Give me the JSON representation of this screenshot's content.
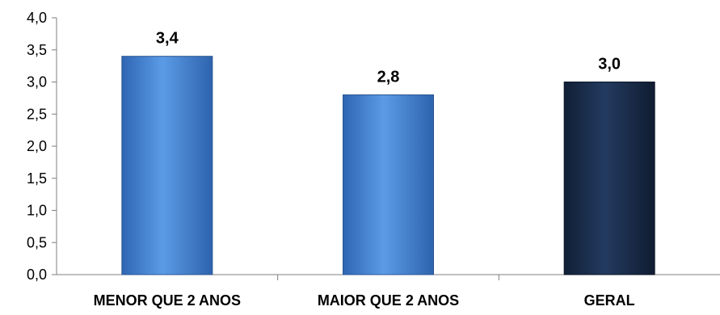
{
  "chart_data": {
    "type": "bar",
    "title": "",
    "xlabel": "",
    "ylabel": "",
    "categories": [
      "MENOR QUE 2 ANOS",
      "MAIOR QUE 2 ANOS",
      "GERAL"
    ],
    "values": [
      3.4,
      2.8,
      3.0
    ],
    "data_labels": [
      "3,4",
      "2,8",
      "3,0"
    ],
    "ylim": [
      0,
      4.0
    ],
    "y_ticks": [
      0,
      0.5,
      1.0,
      1.5,
      2.0,
      2.5,
      3.0,
      3.5,
      4.0
    ],
    "y_tick_labels": [
      "0,0",
      "0,5",
      "1,0",
      "1,5",
      "2,0",
      "2,5",
      "3,0",
      "3,5",
      "4,0"
    ],
    "grid": false,
    "legend": "none",
    "colors": [
      "#4a88d8",
      "#4a88d8",
      "#1a2e4e"
    ]
  }
}
